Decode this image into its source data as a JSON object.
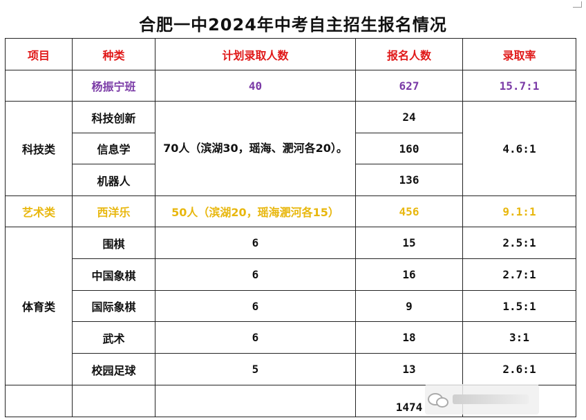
{
  "title": "合肥一中2024年中考自主招生报名情况",
  "headers": [
    "项目",
    "种类",
    "计划录取人数",
    "报名人数",
    "录取率"
  ],
  "yang": {
    "kind": "杨振宁班",
    "plan": "40",
    "applicants": "627",
    "ratio": "15.7:1"
  },
  "tech": {
    "category": "科技类",
    "plan": "70人（滨湖30，瑶海、淝河各20）。",
    "ratio": "4.6:1",
    "rows": [
      {
        "kind": "科技创新",
        "applicants": "24"
      },
      {
        "kind": "信息学",
        "applicants": "160"
      },
      {
        "kind": "机器人",
        "applicants": "136"
      }
    ]
  },
  "art": {
    "category": "艺术类",
    "kind": "西洋乐",
    "plan": "50人（滨湖20，瑶海淝河各15）",
    "applicants": "456",
    "ratio": "9.1:1"
  },
  "sports": {
    "category": "体育类",
    "rows": [
      {
        "kind": "围棋",
        "plan": "6",
        "applicants": "15",
        "ratio": "2.5:1"
      },
      {
        "kind": "中国象棋",
        "plan": "6",
        "applicants": "16",
        "ratio": "2.7:1"
      },
      {
        "kind": "国际象棋",
        "plan": "6",
        "applicants": "9",
        "ratio": "1.5:1"
      },
      {
        "kind": "武术",
        "plan": "6",
        "applicants": "18",
        "ratio": "3:1"
      },
      {
        "kind": "校园足球",
        "plan": "5",
        "applicants": "13",
        "ratio": "2.6:1"
      }
    ]
  },
  "total": {
    "applicants": "1474"
  },
  "colors": {
    "header": "#e01818",
    "yang": "#7a3aa6",
    "art": "#e8b70e"
  }
}
